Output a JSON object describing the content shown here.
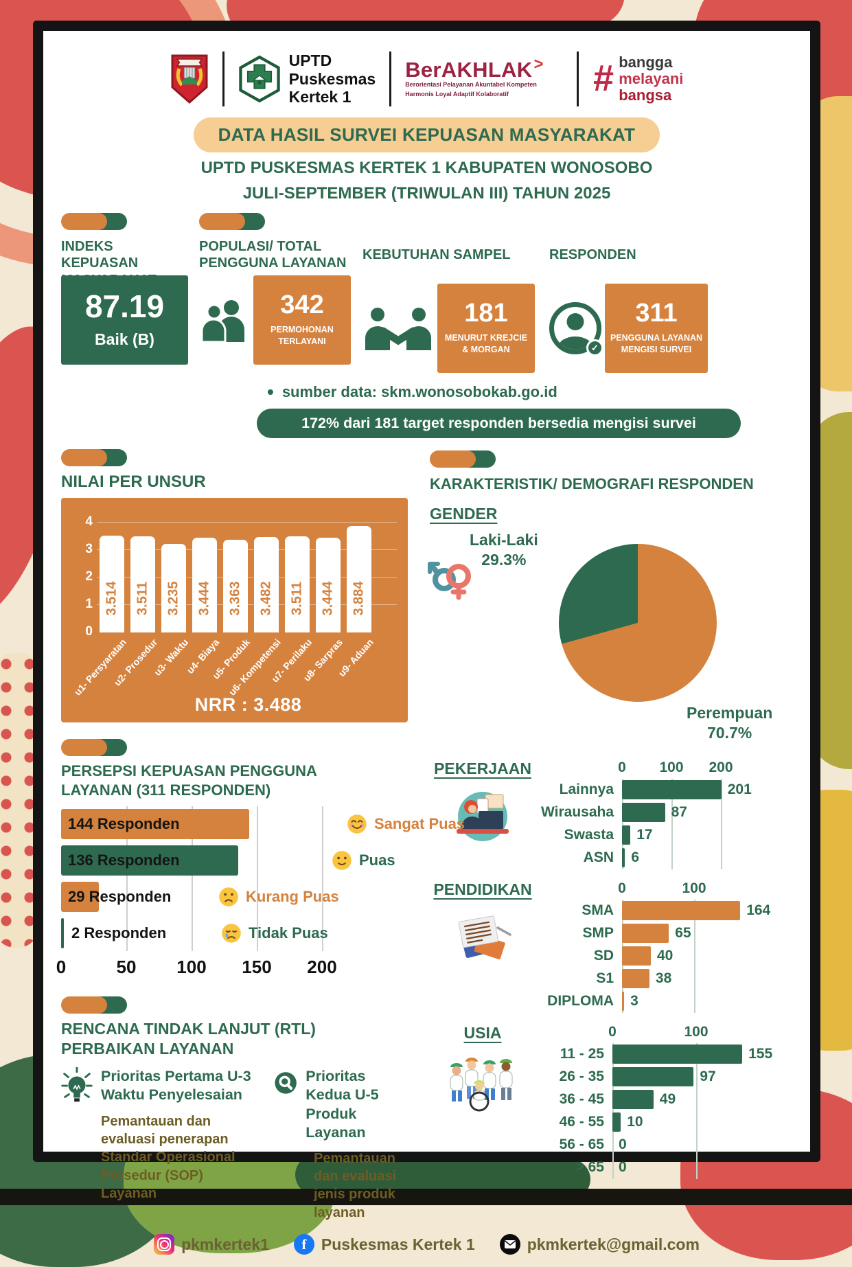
{
  "header": {
    "unit_name": {
      "line1": "UPTD",
      "line2": "Puskesmas",
      "line3": "Kertek 1"
    },
    "berakhlak": {
      "title": "BerAKHLAK",
      "chevron": ">",
      "sub_line1": "Berorientasi Pelayanan Akuntabel Kompeten",
      "sub_line2": "Harmonis Loyal Adaptif Kolaboratif"
    },
    "bangga": {
      "hash": "#",
      "line1": "bangga",
      "line2": "melayani",
      "line3": "bangsa"
    }
  },
  "title": {
    "banner": "DATA HASIL SURVEI KEPUASAN MASYARAKAT",
    "sub1": "UPTD PUSKESMAS KERTEK 1 KABUPATEN WONOSOBO",
    "sub2": "JULI-SEPTEMBER (TRIWULAN III) TAHUN 2025"
  },
  "stats": {
    "ikm": {
      "heading": "INDEKS KEPUASAN MASYARAKAT (IKM)",
      "value": "87.19",
      "label": "Baik (B)"
    },
    "populasi": {
      "heading": "POPULASI/ TOTAL PENGGUNA LAYANAN",
      "value": "342",
      "label": "PERMOHONAN TERLAYANI"
    },
    "sampel": {
      "heading": "KEBUTUHAN SAMPEL",
      "value": "181",
      "label": "MENURUT KREJCIE & MORGAN"
    },
    "responden": {
      "heading": "RESPONDEN",
      "value": "311",
      "label": "PENGGUNA LAYANAN MENGISI SURVEI"
    }
  },
  "source_note": "sumber data: skm.wonosobokab.go.id",
  "highlight_banner": "172% dari 181 target responden bersedia mengisi survei",
  "sections": {
    "demografi": "KARAKTERISTIK/ DEMOGRAFI RESPONDEN",
    "rtl_line1": "RENCANA TINDAK LANJUT (RTL)",
    "rtl_line2": "PERBAIKAN LAYANAN"
  },
  "rtl": {
    "first": {
      "title_line1": "Prioritas Pertama U-3",
      "title_line2": "Waktu Penyelesaian",
      "body": "Pemantauan dan evaluasi penerapan Standar Operasional Prosedur (SOP) Layanan"
    },
    "second": {
      "title_line1": "Prioritas Kedua U-5",
      "title_line2": "Produk Layanan",
      "body": "Pemantauan dan evaluasi jenis produk layanan"
    }
  },
  "footer": {
    "instagram": "pkmkertek1",
    "facebook": "Puskesmas Kertek 1",
    "email": "pkmkertek@gmail.com"
  },
  "colors": {
    "green": "#2d6a4f",
    "orange": "#d5823e",
    "peach": "#f6cd92",
    "brown": "#6d5d24"
  },
  "chart_data": [
    {
      "id": "unsur",
      "type": "bar",
      "title": "NILAI PER UNSUR",
      "categories": [
        "u1- Persyaratan",
        "u2- Prosedur",
        "u3- Waktu",
        "u4- Biaya",
        "u5- Produk",
        "u6- Kompetensi",
        "u7- Perilaku",
        "u8- Sarpras",
        "u9- Aduan"
      ],
      "values": [
        3.514,
        3.511,
        3.235,
        3.444,
        3.363,
        3.482,
        3.511,
        3.444,
        3.884
      ],
      "value_labels": [
        "3.514",
        "3.511",
        "3.235",
        "3.444",
        "3.363",
        "3.482",
        "3.511",
        "3.444",
        "3.884"
      ],
      "ylim": [
        0,
        4
      ],
      "yticks": [
        0,
        1,
        2,
        3,
        4
      ],
      "grid": true,
      "note": "NRR : 3.488",
      "bar_color": "#ffffff",
      "panel_color": "#d5823e"
    },
    {
      "id": "gender",
      "type": "pie",
      "title": "GENDER",
      "labels": [
        "Laki-Laki",
        "Perempuan"
      ],
      "values_pct": [
        29.3,
        70.7
      ],
      "pct_display": [
        "29.3%",
        "70.7%"
      ],
      "colors": [
        "#2d6a4f",
        "#d5823e"
      ]
    },
    {
      "id": "persepsi",
      "type": "bar",
      "orientation": "horizontal",
      "title_line1": "PERSEPSI KEPUASAN PENGGUNA",
      "title_line2": "LAYANAN (311 RESPONDEN)",
      "bar_labels": [
        "144 Responden",
        "136 Responden",
        "29 Responden",
        "2 Responden"
      ],
      "values": [
        144,
        136,
        29,
        2
      ],
      "legend": [
        "Sangat Puas",
        "Puas",
        "Kurang Puas",
        "Tidak Puas"
      ],
      "legend_emojis": [
        "smiling-face",
        "slightly-smiling-face",
        "frowning-face",
        "crying-face"
      ],
      "bar_colors": [
        "#d5823e",
        "#2d6a4f",
        "#d5823e",
        "#2d6a4f"
      ],
      "legend_colors": [
        "#d5823e",
        "#2d6a4f",
        "#d5823e",
        "#2d6a4f"
      ],
      "xticks": [
        0,
        50,
        100,
        150,
        200
      ],
      "xlim": [
        0,
        220
      ],
      "grid": true
    },
    {
      "id": "pekerjaan",
      "type": "bar",
      "orientation": "horizontal",
      "title": "PEKERJAAN",
      "categories": [
        "Lainnya",
        "Wirausaha",
        "Swasta",
        "ASN"
      ],
      "values": [
        201,
        87,
        17,
        6
      ],
      "xticks": [
        0,
        100,
        200
      ],
      "xlim": [
        0,
        230
      ],
      "grid": true,
      "bar_color": "#2d6a4f"
    },
    {
      "id": "pendidikan",
      "type": "bar",
      "orientation": "horizontal",
      "title": "PENDIDIKAN",
      "categories": [
        "SMA",
        "SMP",
        "SD",
        "S1",
        "DIPLOMA"
      ],
      "values": [
        164,
        65,
        40,
        38,
        3
      ],
      "xticks": [
        0,
        100
      ],
      "xlim": [
        0,
        190
      ],
      "grid": true,
      "bar_color": "#d5823e"
    },
    {
      "id": "usia",
      "type": "bar",
      "orientation": "horizontal",
      "title": "USIA",
      "categories": [
        "11 - 25",
        "26 - 35",
        "36 - 45",
        "46 - 55",
        "56 - 65",
        "> 65"
      ],
      "values": [
        155,
        97,
        49,
        10,
        0,
        0
      ],
      "xticks": [
        0,
        100
      ],
      "xlim": [
        0,
        175
      ],
      "grid": true,
      "bar_color": "#2d6a4f"
    }
  ]
}
